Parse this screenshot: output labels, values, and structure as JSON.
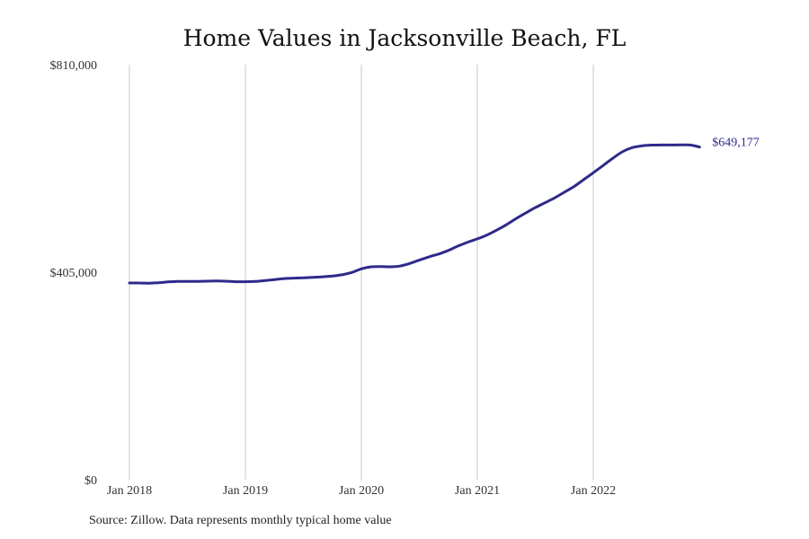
{
  "title": "Home Values in Jacksonville Beach, FL",
  "source": "Source: Zillow. Data represents monthly typical home value",
  "colors": {
    "line": "#2e2a8a",
    "grid": "#c8c8c8"
  },
  "chart_data": {
    "type": "line",
    "title": "Home Values in Jacksonville Beach, FL",
    "xlabel": "",
    "ylabel": "",
    "grid": "vertical",
    "ylim": [
      0,
      810000
    ],
    "y_ticks": [
      {
        "value": 0,
        "label": "$0"
      },
      {
        "value": 405000,
        "label": "$405,000"
      },
      {
        "value": 810000,
        "label": "$810,000"
      }
    ],
    "x_ticks": [
      "Jan 2018",
      "Jan 2019",
      "Jan 2020",
      "Jan 2021",
      "Jan 2022"
    ],
    "end_label": "$649,177",
    "series": [
      {
        "x": [
          "2018-01",
          "2018-02",
          "2018-03",
          "2018-04",
          "2018-05",
          "2018-06",
          "2018-07",
          "2018-08",
          "2018-09",
          "2018-10",
          "2018-11",
          "2018-12",
          "2019-01",
          "2019-02",
          "2019-03",
          "2019-04",
          "2019-05",
          "2019-06",
          "2019-07",
          "2019-08",
          "2019-09",
          "2019-10",
          "2019-11",
          "2019-12",
          "2020-01",
          "2020-02",
          "2020-03",
          "2020-04",
          "2020-05",
          "2020-06",
          "2020-07",
          "2020-08",
          "2020-09",
          "2020-10",
          "2020-11",
          "2020-12",
          "2021-01",
          "2021-02",
          "2021-03",
          "2021-04",
          "2021-05",
          "2021-06",
          "2021-07",
          "2021-08",
          "2021-09",
          "2021-10",
          "2021-11",
          "2021-12",
          "2022-01",
          "2022-02",
          "2022-03",
          "2022-04",
          "2022-05",
          "2022-06",
          "2022-07",
          "2022-08",
          "2022-09",
          "2022-10",
          "2022-11",
          "2022-12"
        ],
        "values": [
          384000,
          384000,
          383500,
          384500,
          386000,
          387000,
          387000,
          387000,
          387500,
          388000,
          387500,
          386500,
          386500,
          387000,
          388500,
          390500,
          392500,
          393500,
          394000,
          395000,
          396000,
          397500,
          400000,
          404500,
          411500,
          415500,
          416000,
          415500,
          417000,
          422000,
          428500,
          435000,
          440500,
          447500,
          456000,
          463500,
          470000,
          477500,
          487000,
          497500,
          509500,
          520500,
          531000,
          540500,
          550000,
          561000,
          572000,
          585500,
          599000,
          613000,
          627000,
          640000,
          648000,
          651500,
          653000,
          653200,
          653300,
          653400,
          653300,
          649177
        ]
      }
    ]
  }
}
